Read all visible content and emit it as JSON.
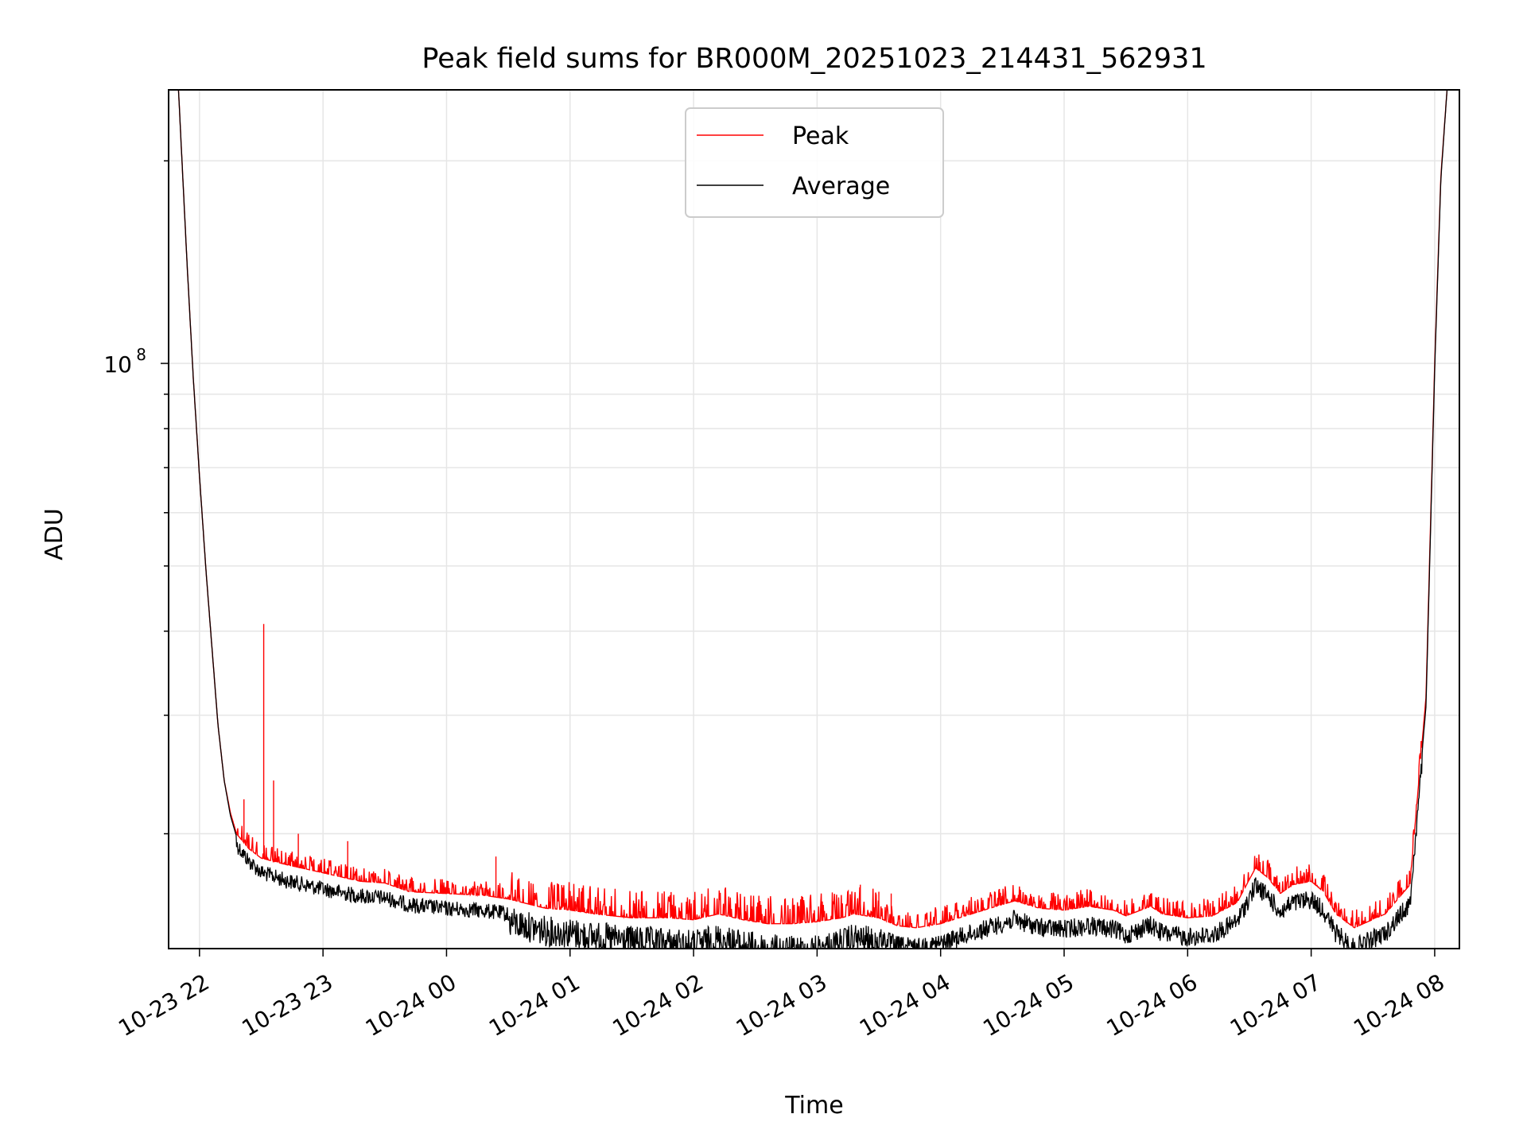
{
  "chart_data": {
    "type": "line",
    "title": "Peak field sums for BR000M_20251023_214431_562931",
    "xlabel": "Time",
    "ylabel": "ADU",
    "yscale": "log",
    "ylim": [
      13500000,
      255000000
    ],
    "xlim_hours": [
      -0.25,
      10.2
    ],
    "grid": true,
    "legend_location": "top-center",
    "x_tick_labels": [
      "10-23 22",
      "10-23 23",
      "10-24 00",
      "10-24 01",
      "10-24 02",
      "10-24 03",
      "10-24 04",
      "10-24 05",
      "10-24 06",
      "10-24 07",
      "10-24 08"
    ],
    "y_tick_labels": [
      {
        "base": "10",
        "exp": "8"
      }
    ],
    "series": [
      {
        "name": "Peak",
        "color": "#ff0000",
        "note": "x = hours after 2025-10-23 22:00, y = ADU",
        "points": [
          [
            -0.17,
            255000000
          ],
          [
            -0.1,
            140000000
          ],
          [
            -0.05,
            95000000
          ],
          [
            0.0,
            68000000
          ],
          [
            0.05,
            50000000
          ],
          [
            0.1,
            38000000
          ],
          [
            0.15,
            29000000
          ],
          [
            0.2,
            24000000
          ],
          [
            0.25,
            21500000
          ],
          [
            0.3,
            20000000
          ],
          [
            0.4,
            19000000
          ],
          [
            0.5,
            18400000
          ],
          [
            0.7,
            18000000
          ],
          [
            1.0,
            17500000
          ],
          [
            1.3,
            17000000
          ],
          [
            1.5,
            16900000
          ],
          [
            1.7,
            16400000
          ],
          [
            2.0,
            16300000
          ],
          [
            2.3,
            16200000
          ],
          [
            2.5,
            16000000
          ],
          [
            2.8,
            15500000
          ],
          [
            3.0,
            15400000
          ],
          [
            3.2,
            15200000
          ],
          [
            3.5,
            15000000
          ],
          [
            3.8,
            15000000
          ],
          [
            4.0,
            14900000
          ],
          [
            4.2,
            15200000
          ],
          [
            4.4,
            14900000
          ],
          [
            4.6,
            14700000
          ],
          [
            4.8,
            14700000
          ],
          [
            5.0,
            14800000
          ],
          [
            5.2,
            15000000
          ],
          [
            5.3,
            15200000
          ],
          [
            5.5,
            15000000
          ],
          [
            5.65,
            14600000
          ],
          [
            5.8,
            14500000
          ],
          [
            6.0,
            14700000
          ],
          [
            6.1,
            14900000
          ],
          [
            6.3,
            15300000
          ],
          [
            6.5,
            15700000
          ],
          [
            6.6,
            15900000
          ],
          [
            6.8,
            15500000
          ],
          [
            7.0,
            15400000
          ],
          [
            7.2,
            15600000
          ],
          [
            7.4,
            15400000
          ],
          [
            7.5,
            15100000
          ],
          [
            7.7,
            15600000
          ],
          [
            7.8,
            15200000
          ],
          [
            8.0,
            15000000
          ],
          [
            8.2,
            15100000
          ],
          [
            8.4,
            15800000
          ],
          [
            8.55,
            17800000
          ],
          [
            8.65,
            17200000
          ],
          [
            8.75,
            16300000
          ],
          [
            8.85,
            16800000
          ],
          [
            9.0,
            17000000
          ],
          [
            9.1,
            16400000
          ],
          [
            9.2,
            15200000
          ],
          [
            9.35,
            14500000
          ],
          [
            9.6,
            15200000
          ],
          [
            9.8,
            16800000
          ],
          [
            9.93,
            32000000
          ],
          [
            10.0,
            100000000
          ],
          [
            10.05,
            190000000
          ],
          [
            10.1,
            255000000
          ]
        ]
      },
      {
        "name": "Average",
        "color": "#000000",
        "note": "x = hours after 2025-10-23 22:00, y = ADU",
        "points": [
          [
            -0.17,
            255000000
          ],
          [
            -0.1,
            140000000
          ],
          [
            -0.05,
            95000000
          ],
          [
            0.0,
            68000000
          ],
          [
            0.05,
            50000000
          ],
          [
            0.1,
            38000000
          ],
          [
            0.15,
            29000000
          ],
          [
            0.2,
            24000000
          ],
          [
            0.25,
            21300000
          ],
          [
            0.3,
            19800000
          ],
          [
            0.4,
            18700000
          ],
          [
            0.5,
            18000000
          ],
          [
            0.7,
            17500000
          ],
          [
            1.0,
            17000000
          ],
          [
            1.3,
            16600000
          ],
          [
            1.5,
            16500000
          ],
          [
            1.7,
            16100000
          ],
          [
            2.0,
            15900000
          ],
          [
            2.3,
            15800000
          ],
          [
            2.5,
            15600000
          ],
          [
            2.8,
            15100000
          ],
          [
            3.0,
            15000000
          ],
          [
            3.2,
            14800000
          ],
          [
            3.5,
            14600000
          ],
          [
            3.8,
            14500000
          ],
          [
            4.0,
            14400000
          ],
          [
            4.2,
            14700000
          ],
          [
            4.4,
            14400000
          ],
          [
            4.6,
            14200000
          ],
          [
            4.8,
            14100000
          ],
          [
            5.0,
            14200000
          ],
          [
            5.2,
            14500000
          ],
          [
            5.3,
            14700000
          ],
          [
            5.5,
            14500000
          ],
          [
            5.65,
            14100000
          ],
          [
            5.8,
            14000000
          ],
          [
            6.0,
            14200000
          ],
          [
            6.1,
            14400000
          ],
          [
            6.3,
            14800000
          ],
          [
            6.5,
            15200000
          ],
          [
            6.6,
            15400000
          ],
          [
            6.8,
            15000000
          ],
          [
            7.0,
            14900000
          ],
          [
            7.2,
            15100000
          ],
          [
            7.4,
            14900000
          ],
          [
            7.5,
            14600000
          ],
          [
            7.7,
            15100000
          ],
          [
            7.8,
            14700000
          ],
          [
            8.0,
            14500000
          ],
          [
            8.2,
            14600000
          ],
          [
            8.4,
            15300000
          ],
          [
            8.55,
            17300000
          ],
          [
            8.65,
            16700000
          ],
          [
            8.75,
            15800000
          ],
          [
            8.85,
            16300000
          ],
          [
            9.0,
            16500000
          ],
          [
            9.1,
            15900000
          ],
          [
            9.2,
            14700000
          ],
          [
            9.35,
            14000000
          ],
          [
            9.6,
            14700000
          ],
          [
            9.8,
            16300000
          ],
          [
            9.93,
            31000000
          ],
          [
            10.0,
            98000000
          ],
          [
            10.05,
            188000000
          ],
          [
            10.1,
            255000000
          ]
        ]
      }
    ],
    "peak_spikes": [
      [
        0.52,
        41000000
      ],
      [
        0.6,
        24000000
      ],
      [
        0.36,
        22500000
      ],
      [
        2.4,
        18500000
      ],
      [
        5.35,
        16800000
      ],
      [
        5.5,
        16400000
      ],
      [
        5.6,
        16300000
      ],
      [
        0.8,
        20000000
      ],
      [
        1.2,
        19500000
      ]
    ]
  }
}
